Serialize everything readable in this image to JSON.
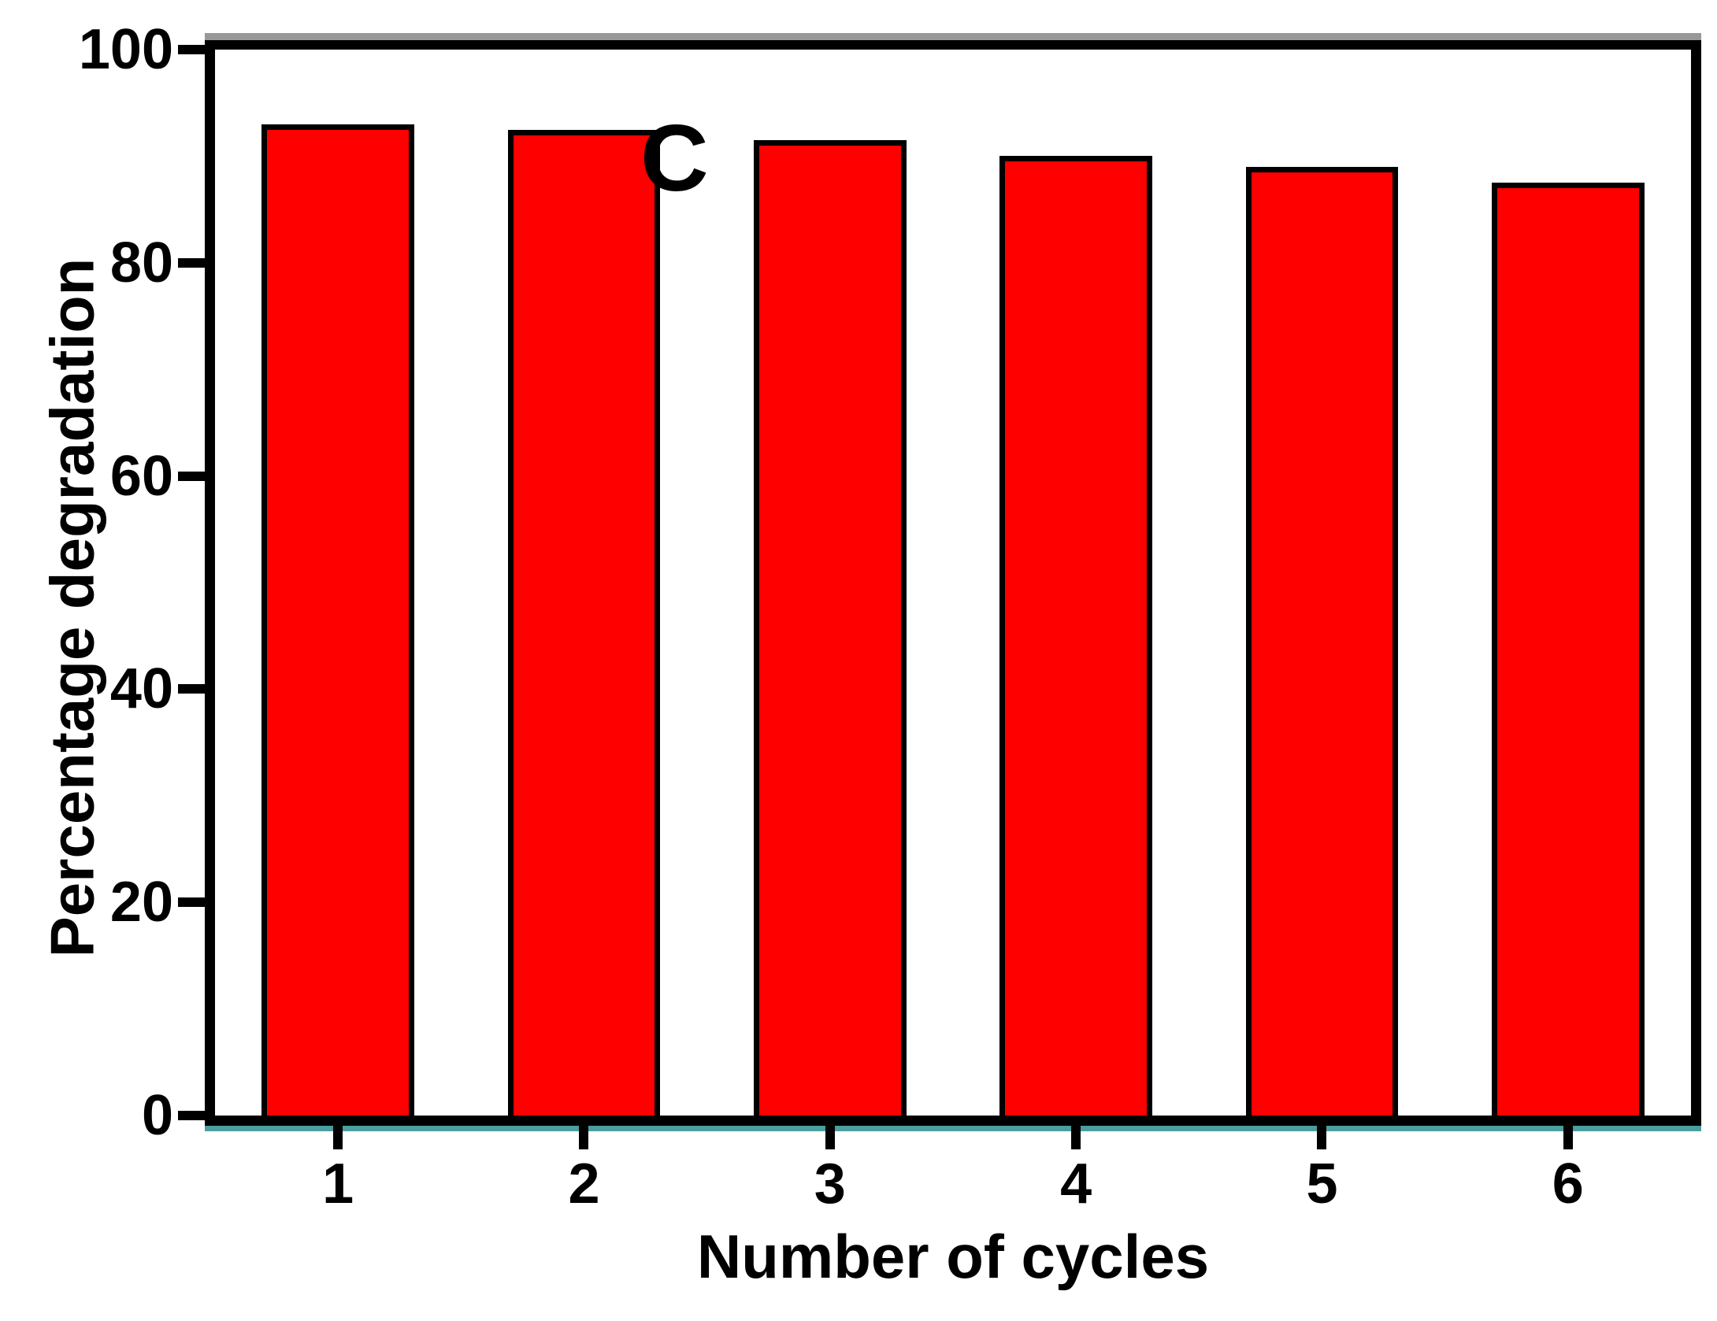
{
  "chart_data": {
    "type": "bar",
    "title": "",
    "panel_label": "C",
    "categories": [
      "1",
      "2",
      "3",
      "4",
      "5",
      "6"
    ],
    "values": [
      93,
      92.5,
      91.5,
      90,
      89,
      87.5
    ],
    "xlabel": "Number of cycles",
    "ylabel": "Percentage degradation",
    "ylim": [
      0,
      100
    ],
    "yticks": [
      0,
      20,
      40,
      60,
      80,
      100
    ],
    "grid": "off",
    "legend": "none",
    "colors": {
      "bar_fill": "#fe0000",
      "bar_border": "#000000",
      "axis": "#000000",
      "baseline_accent": "#4a9e9e",
      "frame_top_highlight": "#989898",
      "background": "#ffffff"
    }
  }
}
